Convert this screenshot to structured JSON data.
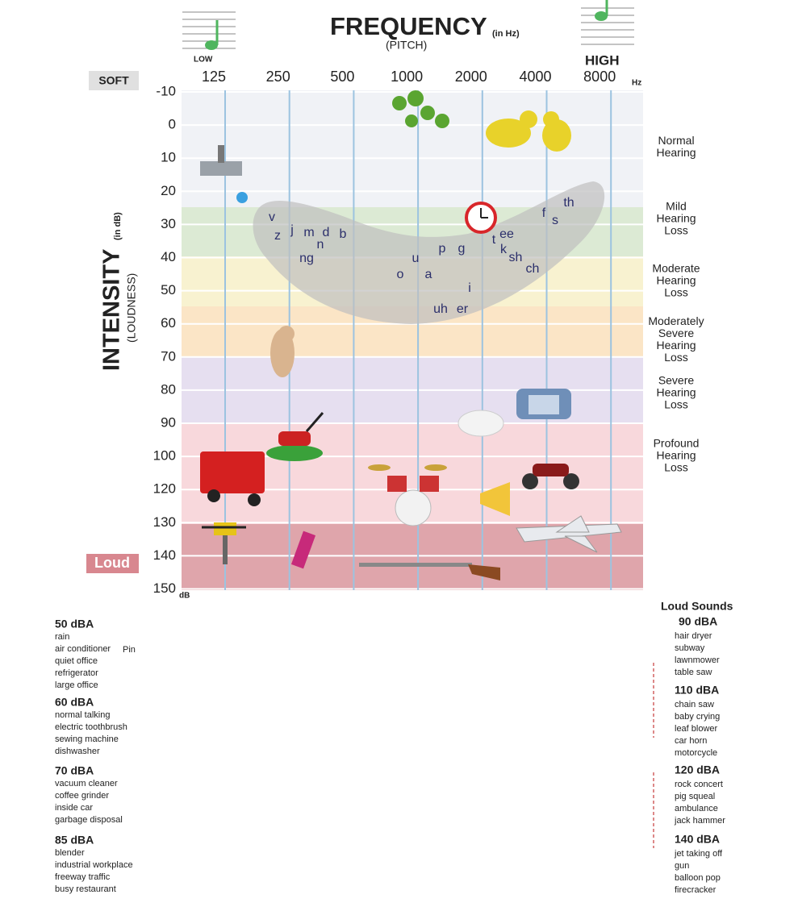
{
  "header": {
    "title": "FREQUENCY",
    "title_unit": "(in Hz)",
    "subtitle": "(PITCH)",
    "low_label": "LOW",
    "high_label": "HIGH"
  },
  "frequency_axis": {
    "ticks": [
      125,
      250,
      500,
      1000,
      2000,
      4000,
      8000
    ],
    "unit": "Hz"
  },
  "intensity_axis": {
    "title": "INTENSITY",
    "title_unit": "(in dB)",
    "subtitle": "(LOUDNESS)",
    "ticks": [
      -10,
      0,
      10,
      20,
      30,
      40,
      50,
      60,
      70,
      80,
      90,
      100,
      120,
      130,
      140,
      150
    ],
    "unit": "dB",
    "soft_label": "SOFT",
    "loud_label": "Loud"
  },
  "hearing_levels": [
    [
      "Normal",
      "Hearing"
    ],
    [
      "Mild",
      "Hearing",
      "Loss"
    ],
    [
      "Moderate",
      "Hearing",
      "Loss"
    ],
    [
      "Moderately",
      "Severe",
      "Hearing",
      "Loss"
    ],
    [
      "Severe",
      "Hearing",
      "Loss"
    ],
    [
      "Profound",
      "Hearing",
      "Loss"
    ]
  ],
  "speech_sounds": [
    "v",
    "z",
    "j",
    "m",
    "d",
    "n",
    "b",
    "ng",
    "u",
    "o",
    "a",
    "p",
    "g",
    "i",
    "uh",
    "er",
    "t",
    "ee",
    "k",
    "sh",
    "ch",
    "f",
    "s",
    "th"
  ],
  "left_list": [
    {
      "heading": "50 dBA",
      "items": [
        "rain",
        "air conditioner",
        "quiet office",
        "refrigerator",
        "large office"
      ]
    },
    {
      "heading": "60 dBA",
      "items": [
        "normal talking",
        "electric toothbrush",
        "sewing machine",
        "dishwasher"
      ]
    },
    {
      "heading": "70 dBA",
      "items": [
        "vacuum cleaner",
        "coffee grinder",
        "inside car",
        "garbage disposal"
      ]
    },
    {
      "heading": "85 dBA",
      "items": [
        "blender",
        "industrial workplace",
        "freeway traffic",
        "busy restaurant"
      ]
    }
  ],
  "note": "Pin",
  "right_list": {
    "title": "Loud Sounds",
    "groups": [
      {
        "heading": "90 dBA",
        "items": [
          "hair dryer",
          "subway",
          "lawnmower",
          "table saw"
        ]
      },
      {
        "heading": "110 dBA",
        "items": [
          "chain saw",
          "baby crying",
          "leaf blower",
          "car horn",
          "motorcycle"
        ]
      },
      {
        "heading": "120 dBA",
        "items": [
          "rock concert",
          "pig squeal",
          "ambulance",
          "jack hammer"
        ]
      },
      {
        "heading": "140 dBA",
        "items": [
          "jet taking off",
          "gun",
          "balloon pop",
          "firecracker"
        ]
      }
    ]
  }
}
